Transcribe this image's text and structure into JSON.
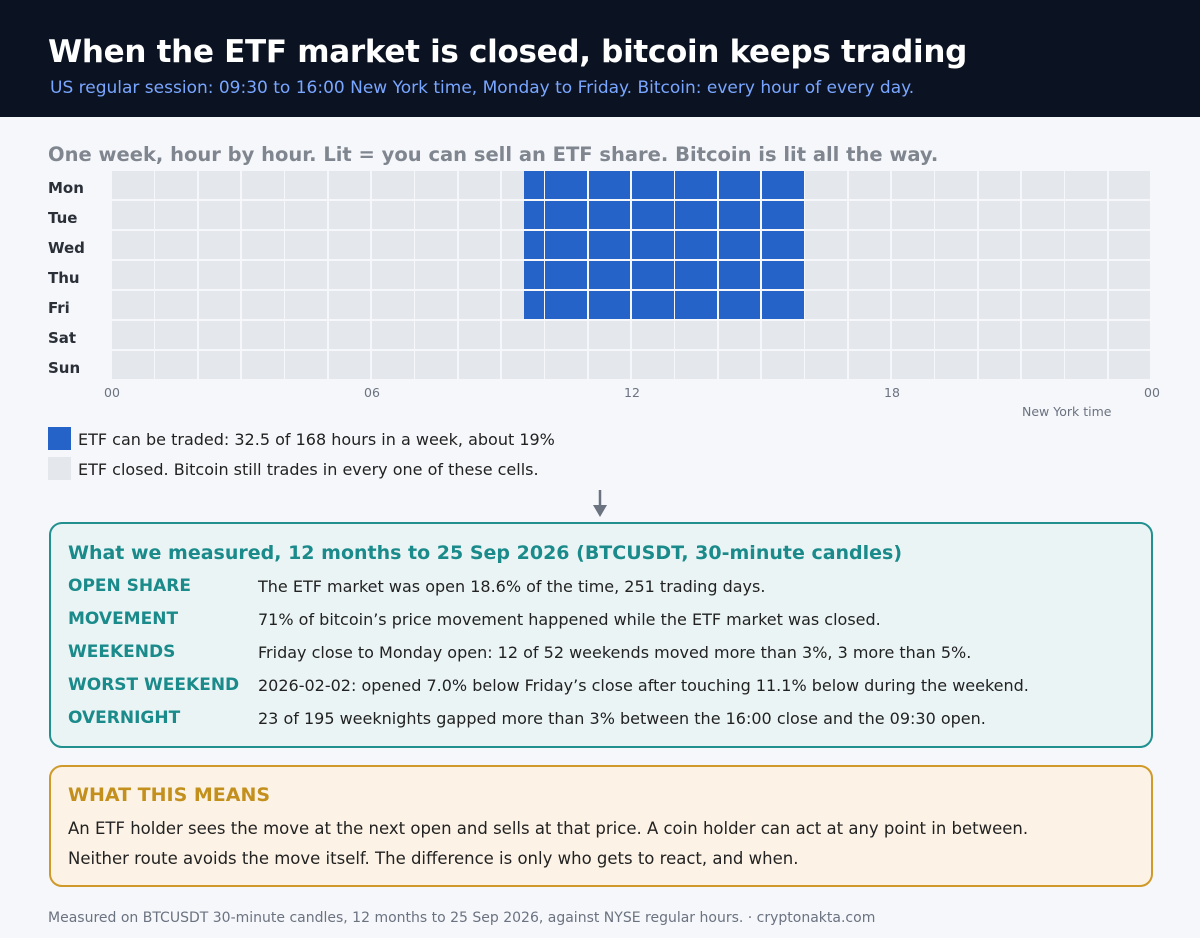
{
  "header": {
    "title": "When the ETF market is closed, bitcoin keeps trading",
    "subtitle": "US regular session: 09:30 to 16:00 New York time, Monday to Friday. Bitcoin: every hour of every day."
  },
  "grid_title": "One week, hour by hour. Lit = you can sell an ETF share. Bitcoin is lit all the way.",
  "chart_data": {
    "type": "heatmap",
    "rows": [
      "Mon",
      "Tue",
      "Wed",
      "Thu",
      "Fri",
      "Sat",
      "Sun"
    ],
    "x_ticks": [
      "00",
      "06",
      "12",
      "18",
      "00"
    ],
    "x_axis_note": "New York time",
    "hours_per_day": 24,
    "open_session": {
      "start_hour": 9.5,
      "end_hour": 16,
      "days": [
        "Mon",
        "Tue",
        "Wed",
        "Thu",
        "Fri"
      ]
    }
  },
  "legend": [
    {
      "color": "#2563c9",
      "label": "ETF can be traded: 32.5 of 168 hours in a week, about 19%"
    },
    {
      "color": "#e4e7eb",
      "label": "ETF closed. Bitcoin still trades in every one of these cells."
    }
  ],
  "measured": {
    "title": "What we measured, 12 months to 25 Sep 2026 (BTCUSDT, 30-minute candles)",
    "rows": [
      {
        "key": "OPEN SHARE",
        "value": "The ETF market was open 18.6% of the time, 251 trading days."
      },
      {
        "key": "MOVEMENT",
        "value": "71% of bitcoin’s price movement happened while the ETF market was closed."
      },
      {
        "key": "WEEKENDS",
        "value": "Friday close to Monday open: 12 of 52 weekends moved more than 3%, 3 more than 5%."
      },
      {
        "key": "WORST WEEKEND",
        "value": "2026-02-02: opened 7.0% below Friday’s close after touching 11.1% below during the weekend."
      },
      {
        "key": "OVERNIGHT",
        "value": "23 of 195 weeknights gapped more than 3% between the 16:00 close and the 09:30 open."
      }
    ]
  },
  "means": {
    "title": "WHAT THIS MEANS",
    "line1": "An ETF holder sees the move at the next open and sells at that price. A coin holder can act at any point in between.",
    "line2": "Neither route avoids the move itself. The difference is only who gets to react, and when."
  },
  "footer": "Measured on BTCUSDT 30-minute candles, 12 months to 25 Sep 2026, against NYSE regular hours.  ·  cryptonakta.com",
  "colors": {
    "open": "#2563c9",
    "closed": "#e4e7eb",
    "teal": "#1a8a8a",
    "amber": "#c4901d"
  }
}
